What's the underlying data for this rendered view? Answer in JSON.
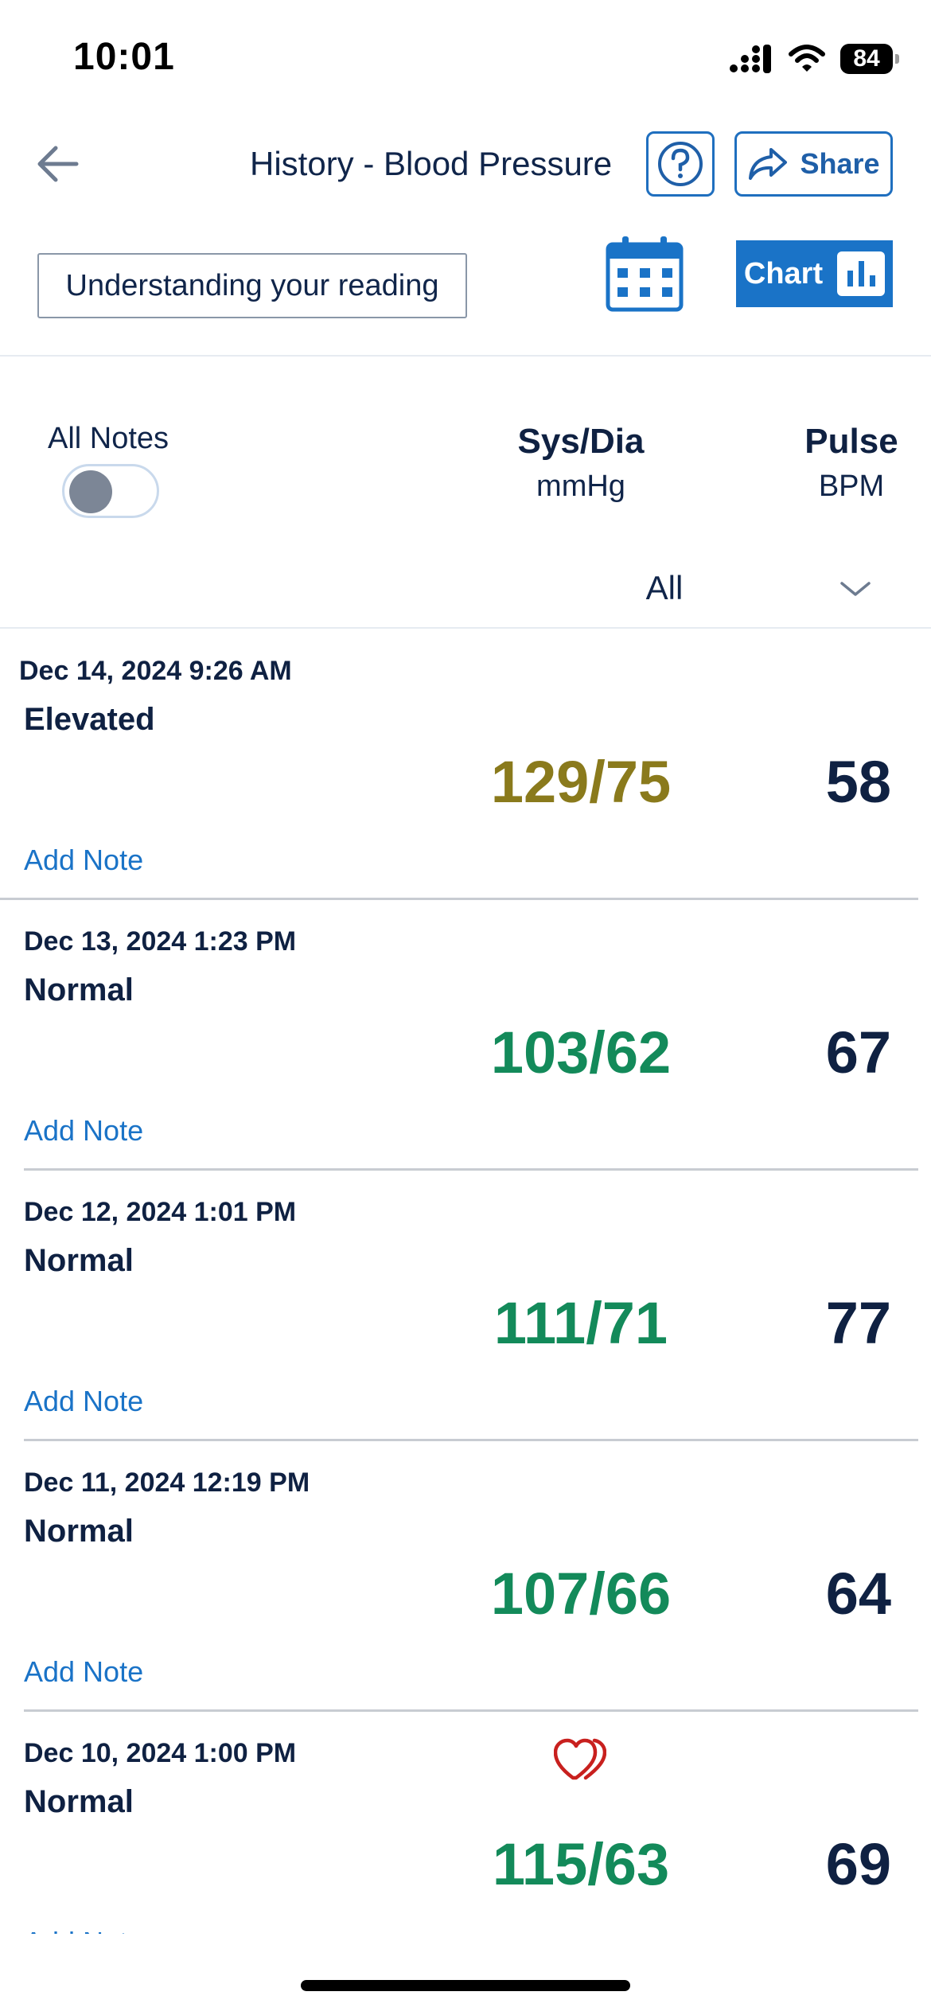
{
  "status_bar": {
    "time": "10:01",
    "battery": "84"
  },
  "header": {
    "title": "History - Blood Pressure",
    "share_label": "Share",
    "understanding_label": "Understanding your reading",
    "chart_label": "Chart"
  },
  "columns": {
    "notes_label": "All Notes",
    "sys_dia_label": "Sys/Dia",
    "sys_dia_unit": "mmHg",
    "pulse_label": "Pulse",
    "pulse_unit": "BPM"
  },
  "filter": {
    "selected": "All"
  },
  "readings": [
    {
      "date": "Dec 14, 2024 9:26 AM",
      "category": "Elevated",
      "bp": "129/75",
      "pulse": "58",
      "note_link": "Add Note",
      "bp_color": "#8a7a1c",
      "flag": ""
    },
    {
      "date": "Dec 13, 2024 1:23 PM",
      "category": "Normal",
      "bp": "103/62",
      "pulse": "67",
      "note_link": "Add Note",
      "bp_color": "#138a5a",
      "flag": ""
    },
    {
      "date": "Dec 12, 2024 1:01 PM",
      "category": "Normal",
      "bp": "111/71",
      "pulse": "77",
      "note_link": "Add Note",
      "bp_color": "#138a5a",
      "flag": ""
    },
    {
      "date": "Dec 11, 2024 12:19 PM",
      "category": "Normal",
      "bp": "107/66",
      "pulse": "64",
      "note_link": "Add Note",
      "bp_color": "#138a5a",
      "flag": ""
    },
    {
      "date": "Dec 10, 2024 1:00 PM",
      "category": "Normal",
      "bp": "115/63",
      "pulse": "69",
      "note_link": "Add Note",
      "bp_color": "#138a5a",
      "flag": "irregular-heartbeat-icon"
    }
  ],
  "colors": {
    "accent": "#1a73c7",
    "text": "#0f2142",
    "elevated": "#8a7a1c",
    "normal": "#138a5a",
    "heart": "#c8201e"
  }
}
